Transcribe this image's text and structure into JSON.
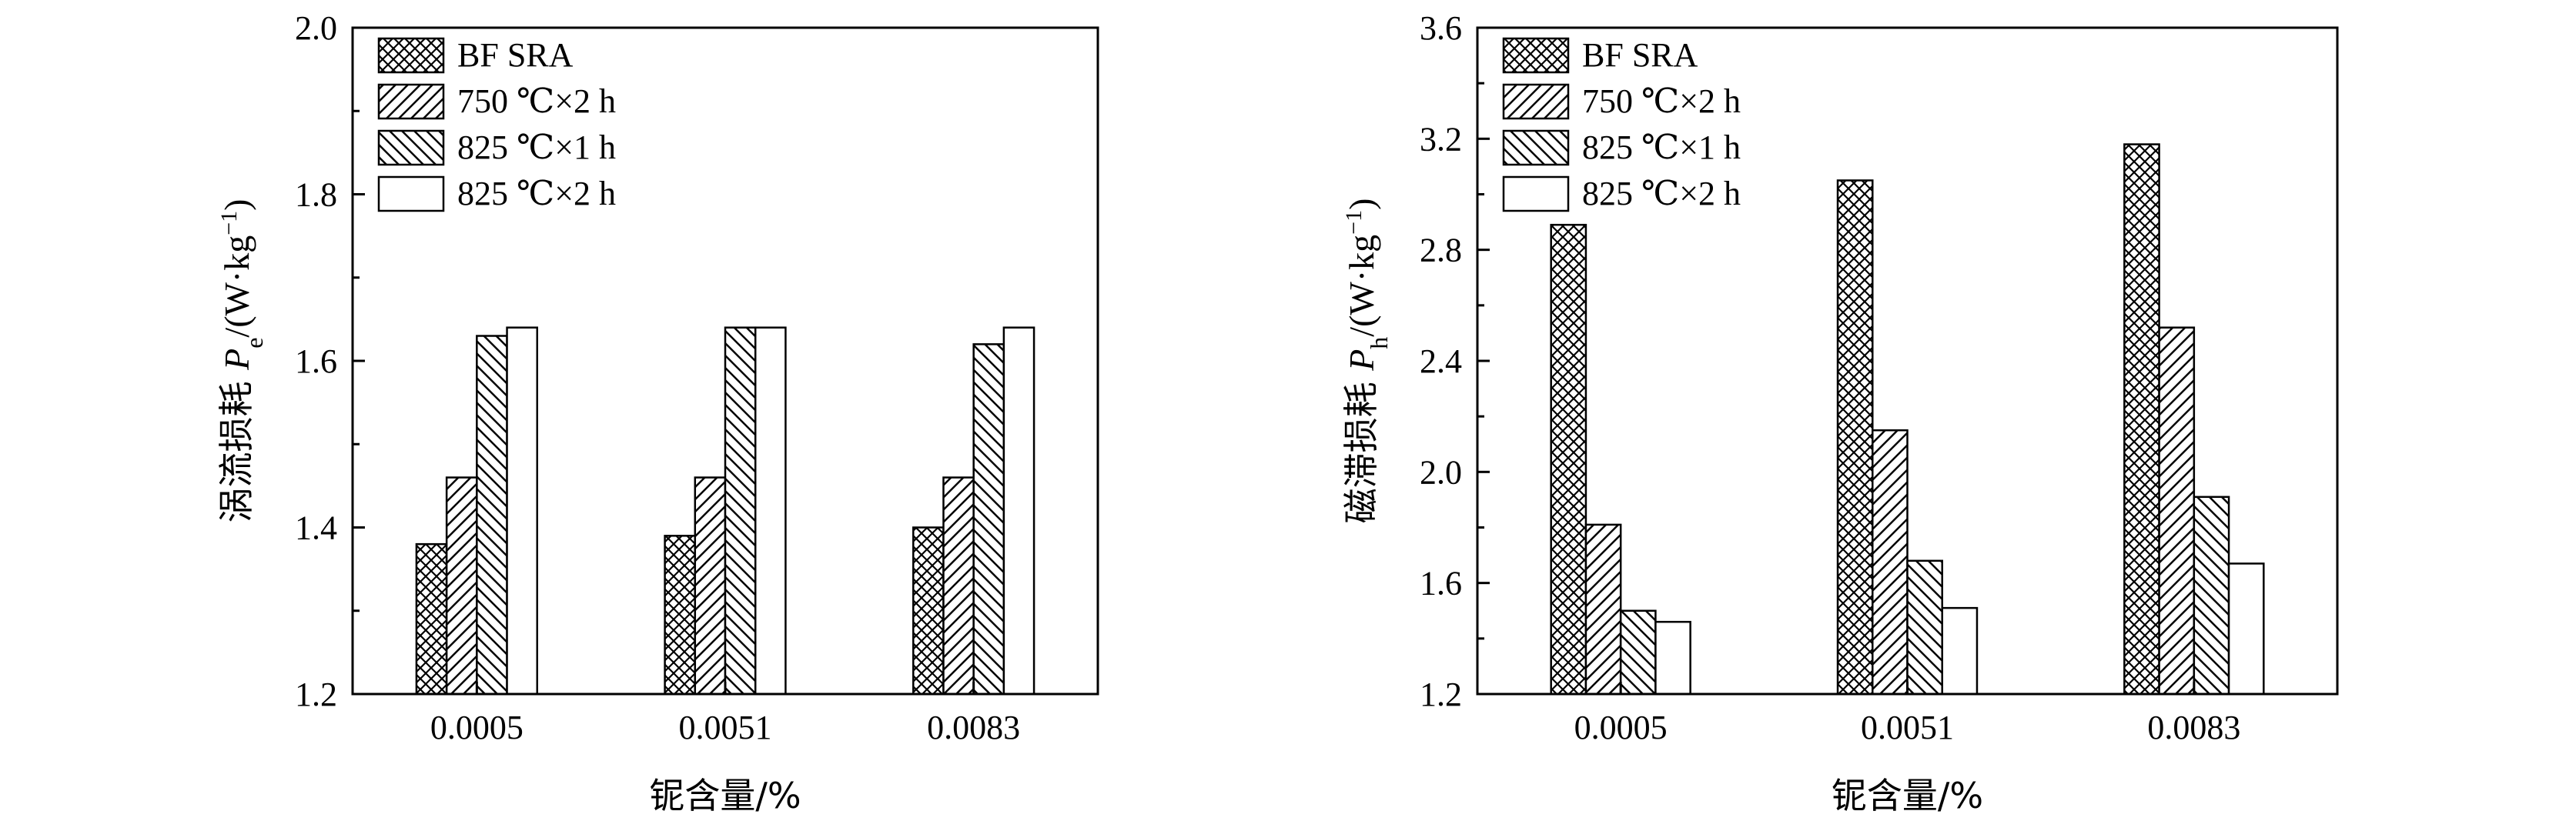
{
  "chart_data": [
    {
      "type": "bar",
      "categories": [
        "0.0005",
        "0.0051",
        "0.0083"
      ],
      "series": [
        {
          "name": "BF SRA",
          "values": [
            1.38,
            1.39,
            1.4
          ]
        },
        {
          "name": "750 ℃×2 h",
          "values": [
            1.46,
            1.46,
            1.46
          ]
        },
        {
          "name": "825 ℃×1 h",
          "values": [
            1.63,
            1.64,
            1.62
          ]
        },
        {
          "name": "825 ℃×2 h",
          "values": [
            1.64,
            1.64,
            1.64
          ]
        }
      ],
      "xlabel": "铌含量/%",
      "ylabel_prefix": "涡流损耗 ",
      "ylabel_symbol": "P",
      "ylabel_sub": "e",
      "ylabel_unit_pre": "/(W·kg",
      "ylabel_unit_sup": "−1",
      "ylabel_unit_post": ")",
      "ylim": [
        1.2,
        2.0
      ],
      "yticks": [
        1.2,
        1.4,
        1.6,
        1.8,
        2.0
      ],
      "ytick_labels": [
        "1.2",
        "1.4",
        "1.6",
        "1.8",
        "2.0"
      ],
      "legend": "top-left",
      "grid": false
    },
    {
      "type": "bar",
      "categories": [
        "0.0005",
        "0.0051",
        "0.0083"
      ],
      "series": [
        {
          "name": "BF SRA",
          "values": [
            2.89,
            3.05,
            3.18
          ]
        },
        {
          "name": "750 ℃×2 h",
          "values": [
            1.81,
            2.15,
            2.52
          ]
        },
        {
          "name": "825 ℃×1 h",
          "values": [
            1.5,
            1.68,
            1.91
          ]
        },
        {
          "name": "825 ℃×2 h",
          "values": [
            1.46,
            1.51,
            1.67
          ]
        }
      ],
      "xlabel": "铌含量/%",
      "ylabel_prefix": "磁滞损耗 ",
      "ylabel_symbol": "P",
      "ylabel_sub": "h",
      "ylabel_unit_pre": "/(W·kg",
      "ylabel_unit_sup": "−1",
      "ylabel_unit_post": ")",
      "ylim": [
        1.2,
        3.6
      ],
      "yticks": [
        1.2,
        1.6,
        2.0,
        2.4,
        2.8,
        3.2,
        3.6
      ],
      "ytick_labels": [
        "1.2",
        "1.6",
        "2.0",
        "2.4",
        "2.8",
        "3.2",
        "3.6"
      ],
      "legend": "top-left",
      "grid": false
    }
  ]
}
